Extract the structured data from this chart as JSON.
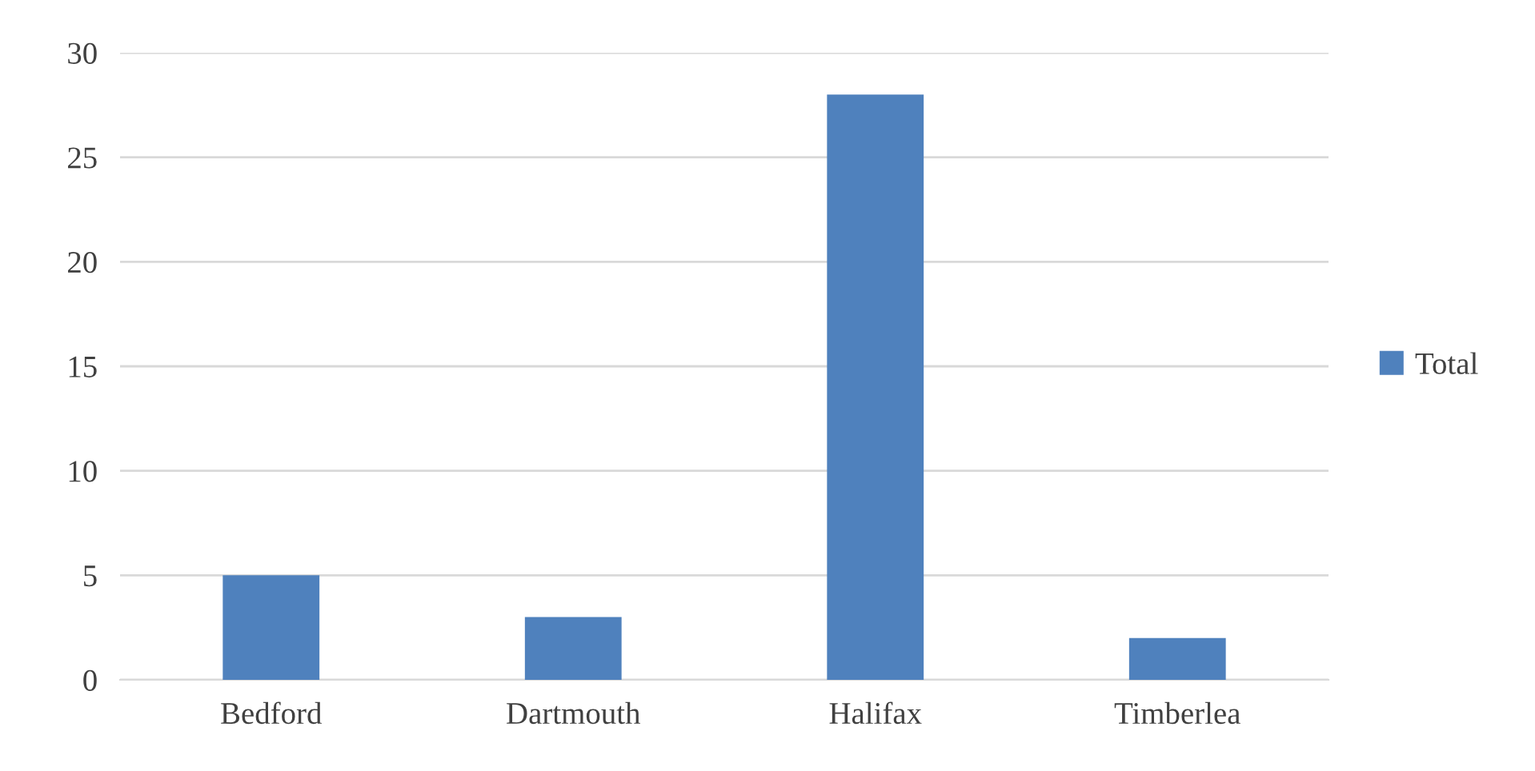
{
  "chart_data": {
    "type": "bar",
    "categories": [
      "Bedford",
      "Dartmouth",
      "Halifax",
      "Timberlea"
    ],
    "series": [
      {
        "name": "Total",
        "color": "#4f81bd",
        "values": [
          5,
          3,
          28,
          2
        ]
      }
    ],
    "ylim": [
      0,
      30
    ],
    "yticks": [
      0,
      5,
      10,
      15,
      20,
      25,
      30
    ],
    "grid": "y",
    "legend": "right"
  }
}
